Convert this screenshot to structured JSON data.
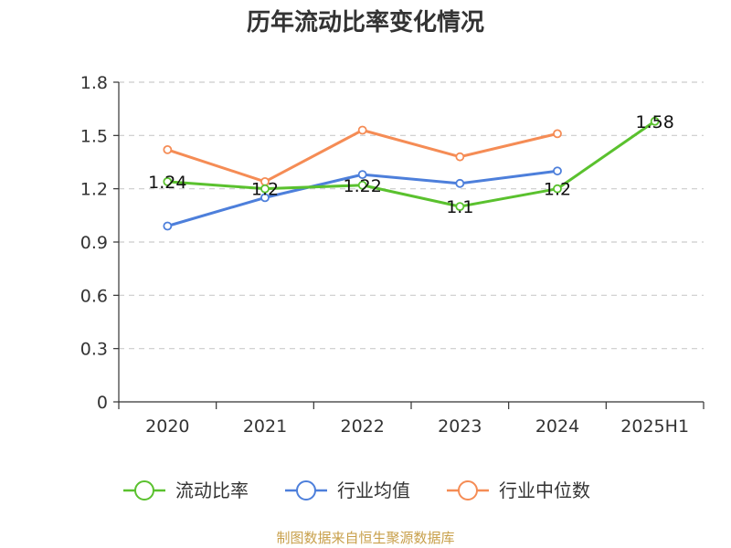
{
  "title": "历年流动比率变化情况",
  "source": "制图数据来自恒生聚源数据库",
  "chart_data": {
    "type": "line",
    "title": "历年流动比率变化情况",
    "categories": [
      "2020",
      "2021",
      "2022",
      "2023",
      "2024",
      "2025H1"
    ],
    "y_ticks": [
      "0",
      "0.3",
      "0.6",
      "0.9",
      "1.2",
      "1.5",
      "1.8"
    ],
    "ylim": [
      0,
      1.8
    ],
    "grid": true,
    "legend_position": "bottom",
    "series": [
      {
        "name": "流动比率",
        "color": "#5ac12e",
        "values": [
          1.24,
          1.2,
          1.22,
          1.1,
          1.2,
          1.58
        ],
        "labels": [
          "1.24",
          "1.2",
          "1.22",
          "1.1",
          "1.2",
          "1.58"
        ]
      },
      {
        "name": "行业均值",
        "color": "#4d7fdb",
        "values": [
          0.99,
          1.15,
          1.28,
          1.23,
          1.3,
          null
        ]
      },
      {
        "name": "行业中位数",
        "color": "#f58c55",
        "values": [
          1.42,
          1.24,
          1.53,
          1.38,
          1.51,
          null
        ]
      }
    ]
  }
}
